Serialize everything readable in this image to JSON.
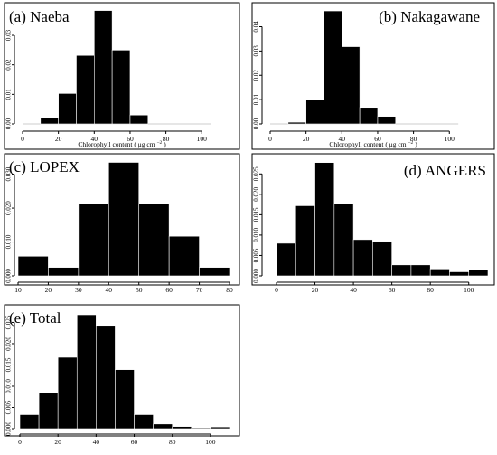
{
  "chart_data": [
    {
      "type": "bar",
      "title": "(a) Naeba",
      "title_position": "top-left",
      "xlabel": "Chlorophyll content ( μg cm",
      "xlabel_sup": "−2",
      "xlabel_end": ")",
      "xlim": [
        0,
        115
      ],
      "xticks": [
        "0",
        "20",
        "40",
        "60",
        "80",
        "100"
      ],
      "ylim": [
        0,
        0.0395
      ],
      "yticks": [
        "0.00",
        "0.01",
        "0.02",
        "0.03"
      ],
      "bin_edges": [
        10,
        20,
        30,
        40,
        50,
        60,
        70
      ],
      "values": [
        0.002,
        0.0103,
        0.0232,
        0.0384,
        0.025,
        0.003
      ],
      "baseline_range": [
        0,
        105
      ]
    },
    {
      "type": "bar",
      "title": "(b) Nakagawane",
      "title_position": "top-right",
      "xlabel": "Chlorophyll content ( μg cm",
      "xlabel_sup": "−2",
      "xlabel_end": ")",
      "xlim": [
        0,
        115
      ],
      "xticks": [
        "0",
        "20",
        "40",
        "60",
        "80",
        "100"
      ],
      "ylim": [
        0,
        0.048
      ],
      "yticks": [
        "0.00",
        "0.01",
        "0.02",
        "0.03",
        "0.04"
      ],
      "bin_edges": [
        10,
        20,
        30,
        40,
        50,
        60,
        70
      ],
      "values": [
        0.0007,
        0.01,
        0.0465,
        0.0318,
        0.0068,
        0.0031
      ],
      "baseline_range": [
        0,
        105
      ]
    },
    {
      "type": "bar",
      "title": "(c) LOPEX",
      "title_position": "top-left",
      "xlabel": "",
      "xlim": [
        10,
        80
      ],
      "xticks": [
        "10",
        "20",
        "30",
        "40",
        "50",
        "60",
        "70",
        "80"
      ],
      "ylim": [
        0,
        0.0355
      ],
      "yticks": [
        "0.000",
        "0.010",
        "0.020",
        "0.030"
      ],
      "bin_edges": [
        10,
        20,
        30,
        40,
        50,
        60,
        70,
        80
      ],
      "values": [
        0.0058,
        0.0025,
        0.0213,
        0.0335,
        0.0213,
        0.0117,
        0.0025
      ]
    },
    {
      "type": "bar",
      "title": "(d) ANGERS",
      "title_position": "top-right",
      "xlabel": "",
      "xlim": [
        0,
        110
      ],
      "xticks": [
        "0",
        "20",
        "40",
        "60",
        "80",
        "100"
      ],
      "ylim": [
        0,
        0.0295
      ],
      "yticks": [
        "0.000",
        "0.005",
        "0.010",
        "0.015",
        "0.020",
        "0.025"
      ],
      "bin_edges": [
        0,
        10,
        20,
        30,
        40,
        50,
        60,
        70,
        80,
        90,
        100,
        110
      ],
      "values": [
        0.008,
        0.0172,
        0.0278,
        0.0178,
        0.0089,
        0.0085,
        0.0027,
        0.0027,
        0.0017,
        0.001,
        0.0014
      ]
    },
    {
      "type": "bar",
      "title": "(e) Total",
      "title_position": "top-left",
      "xlabel": "",
      "xlim": [
        0,
        110
      ],
      "xticks": [
        "0",
        "20",
        "40",
        "60",
        "80",
        "100"
      ],
      "ylim": [
        0,
        0.0285
      ],
      "yticks": [
        "0.000",
        "0.005",
        "0.010",
        "0.015",
        "0.020",
        "0.025"
      ],
      "bin_edges": [
        0,
        10,
        20,
        30,
        40,
        50,
        60,
        70,
        80,
        90,
        100,
        110
      ],
      "values": [
        0.0033,
        0.0085,
        0.0168,
        0.0268,
        0.0243,
        0.0139,
        0.0033,
        0.0011,
        0.0005,
        0.0002,
        0.0004
      ]
    }
  ]
}
